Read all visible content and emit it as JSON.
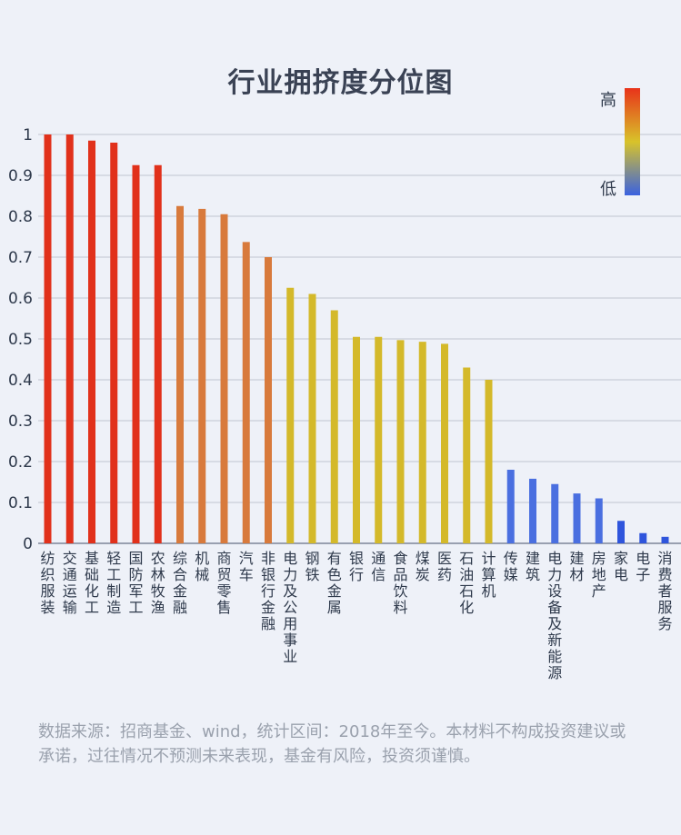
{
  "chart_data": {
    "type": "bar",
    "title": "行业拥挤度分位图",
    "ylim": [
      0,
      1
    ],
    "yticks": [
      "0",
      "0.1",
      "0.2",
      "0.3",
      "0.4",
      "0.5",
      "0.6",
      "0.7",
      "0.8",
      "0.9",
      "1"
    ],
    "grid": true,
    "legend": {
      "high": "高",
      "low": "低",
      "placement": "top-right",
      "gradient": [
        "#e8331a",
        "#d8c32a",
        "#3a62e0"
      ]
    },
    "categories": [
      "纺织服装",
      "交通运输",
      "基础化工",
      "轻工制造",
      "国防军工",
      "农林牧渔",
      "综合金融",
      "机械",
      "商贸零售",
      "汽车",
      "非银行金融",
      "电力及公用事业",
      "钢铁",
      "有色金属",
      "银行",
      "通信",
      "食品饮料",
      "煤炭",
      "医药",
      "石油石化",
      "计算机",
      "传媒",
      "建筑",
      "电力设备及新能源",
      "建材",
      "房地产",
      "家电",
      "电子",
      "消费者服务"
    ],
    "values": [
      1.0,
      1.0,
      0.985,
      0.98,
      0.925,
      0.925,
      0.825,
      0.818,
      0.805,
      0.737,
      0.7,
      0.625,
      0.61,
      0.57,
      0.505,
      0.505,
      0.497,
      0.493,
      0.488,
      0.43,
      0.4,
      0.18,
      0.158,
      0.145,
      0.122,
      0.11,
      0.055,
      0.025,
      0.016
    ],
    "colors": [
      "#e1311b",
      "#e1311b",
      "#e1311b",
      "#e1311b",
      "#e1311b",
      "#e1311b",
      "#d87a3c",
      "#d87a3c",
      "#d87a3c",
      "#d87a3c",
      "#d87a3c",
      "#d4b92a",
      "#d4b92a",
      "#d4b92a",
      "#d4b92a",
      "#d4b92a",
      "#d4b92a",
      "#d4b92a",
      "#d4b92a",
      "#d4b92a",
      "#d4b92a",
      "#4a6fe0",
      "#4a6fe0",
      "#4a6fe0",
      "#4a6fe0",
      "#4a6fe0",
      "#2f55dc",
      "#2f55dc",
      "#2f55dc"
    ]
  },
  "source": "数据来源：招商基金、wind，统计区间：2018年至今。本材料不构成投资建议或承诺，过往情况不预测未来表现，基金有风险，投资须谨慎。"
}
